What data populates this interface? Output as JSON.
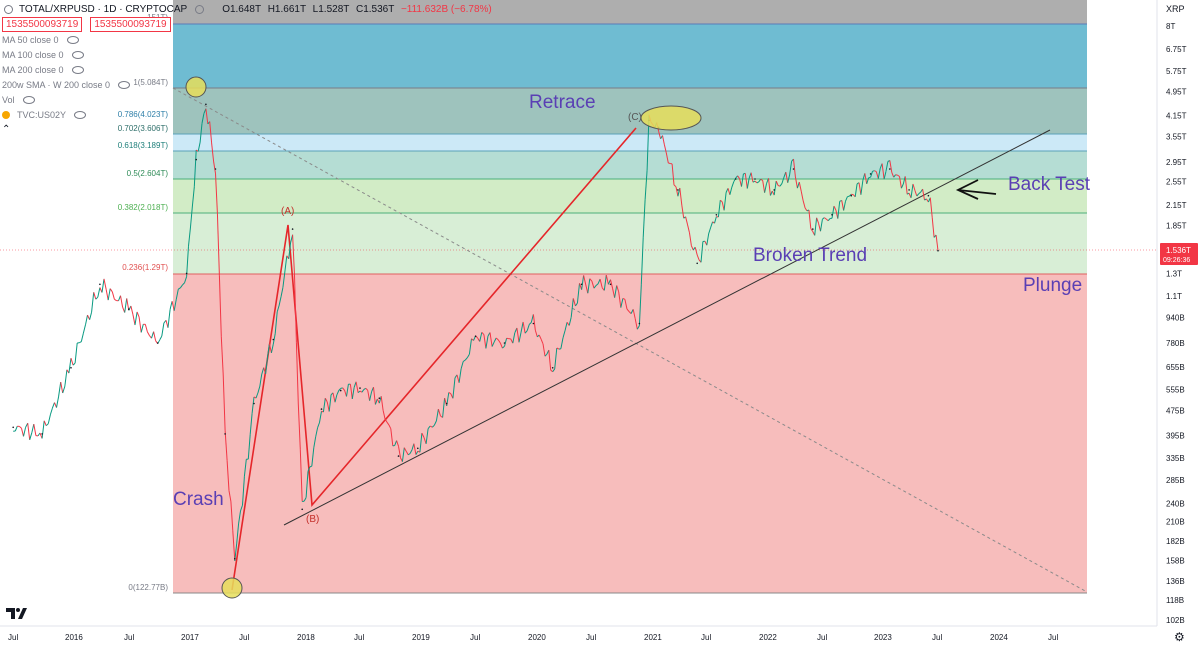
{
  "header": {
    "symbol": "TOTAL/XRPUSD · 1D · CRYPTOCAP",
    "open": "O1.648T",
    "high": "H1.661T",
    "low": "L1.528T",
    "close": "C1.536T",
    "change": "−111.632B (−6.78%)",
    "price_box_1": "1535500093719",
    "price_box_2": "1535500093719",
    "top_clipped_label": "151T)"
  },
  "indicators": [
    {
      "label": "MA 50 close 0"
    },
    {
      "label": "MA 100 close 0"
    },
    {
      "label": "MA 200 close 0"
    },
    {
      "label": "200w SMA · W 200 close 0"
    },
    {
      "label": "Vol"
    },
    {
      "label": "TVC:US02Y"
    }
  ],
  "price_axis": {
    "unit": "XRP",
    "labels": [
      "8T",
      "6.75T",
      "5.75T",
      "4.95T",
      "4.15T",
      "3.55T",
      "2.95T",
      "2.55T",
      "2.15T",
      "1.85T",
      "1.3T",
      "1.1T",
      "940B",
      "780B",
      "655B",
      "555B",
      "475B",
      "395B",
      "335B",
      "285B",
      "240B",
      "210B",
      "182B",
      "158B",
      "136B",
      "118B",
      "102B"
    ],
    "current_price": "1.536T",
    "countdown": "09:26:36"
  },
  "time_axis": {
    "labels": [
      "Jul",
      "2016",
      "Jul",
      "2017",
      "Jul",
      "2018",
      "Jul",
      "2019",
      "Jul",
      "2020",
      "Jul",
      "2021",
      "Jul",
      "2022",
      "Jul",
      "2023",
      "Jul",
      "2024",
      "Jul"
    ]
  },
  "chart_data": {
    "type": "line",
    "title": "TOTAL/XRPUSD · 1D · CRYPTOCAP",
    "y_scale": "log",
    "x_range": [
      "2015-06",
      "2024-09"
    ],
    "fib_levels": [
      {
        "ratio": "1",
        "value": "5.084T",
        "label": "1(5.084T)"
      },
      {
        "ratio": "0.786",
        "value": "4.023T",
        "label": "0.786(4.023T)"
      },
      {
        "ratio": "0.702",
        "value": "3.606T",
        "label": "0.702(3.606T)"
      },
      {
        "ratio": "0.618",
        "value": "3.189T",
        "label": "0.618(3.189T)"
      },
      {
        "ratio": "0.5",
        "value": "2.604T",
        "label": "0.5(2.604T)"
      },
      {
        "ratio": "0.382",
        "value": "2.018T",
        "label": "0.382(2.018T)"
      },
      {
        "ratio": "0.236",
        "value": "1.29T",
        "label": "0.236(1.29T)"
      },
      {
        "ratio": "0",
        "value": "122.77B",
        "label": "0(122.77B)"
      }
    ],
    "series": [
      {
        "name": "TOTAL/XRPUSD",
        "x": [
          "2015-07",
          "2015-10",
          "2016-01",
          "2016-04",
          "2016-07",
          "2016-10",
          "2017-01",
          "2017-02",
          "2017-03",
          "2017-04",
          "2017-05",
          "2017-06",
          "2017-08",
          "2017-10",
          "2017-12",
          "2018-01",
          "2018-03",
          "2018-05",
          "2018-07",
          "2018-09",
          "2018-11",
          "2019-01",
          "2019-04",
          "2019-07",
          "2019-10",
          "2020-01",
          "2020-03",
          "2020-06",
          "2020-09",
          "2020-12",
          "2021-01",
          "2021-02",
          "2021-04",
          "2021-06",
          "2021-08",
          "2021-10",
          "2021-12",
          "2022-02",
          "2022-04",
          "2022-06",
          "2022-08",
          "2022-10",
          "2022-12",
          "2023-02",
          "2023-04",
          "2023-06",
          "2023-07"
        ],
        "values": [
          420,
          400,
          650,
          1200,
          1000,
          780,
          1300,
          3000,
          4500,
          2800,
          400,
          160,
          500,
          800,
          1800,
          230,
          480,
          550,
          560,
          520,
          340,
          360,
          500,
          820,
          780,
          900,
          650,
          1200,
          1200,
          900,
          4000,
          3800,
          2400,
          1400,
          2000,
          2600,
          2600,
          2400,
          2800,
          1800,
          2000,
          2300,
          2700,
          2800,
          2400,
          2300,
          1536
        ]
      }
    ],
    "annotations": [
      "Retrace",
      "Back Test",
      "Broken Trend",
      "Plunge",
      "Crash",
      "(A)",
      "(B)",
      "(C)"
    ]
  }
}
